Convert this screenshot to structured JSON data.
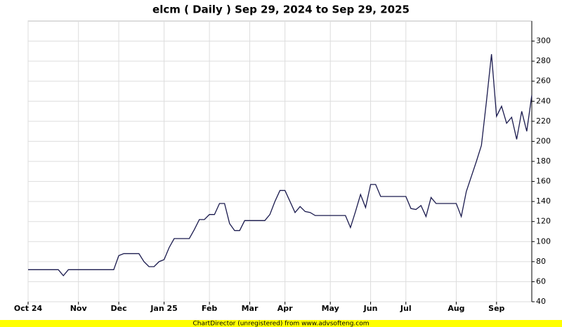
{
  "chart_data": {
    "type": "line",
    "title": "elcm ( Daily ) Sep 29, 2024 to Sep 29, 2025",
    "footer": "ChartDirector (unregistered) from www.advsofteng.com",
    "categories": [
      "Oct 24",
      null,
      null,
      null,
      null,
      null,
      null,
      null,
      null,
      null,
      "Nov",
      null,
      null,
      null,
      null,
      null,
      null,
      null,
      "Dec",
      null,
      null,
      null,
      null,
      null,
      null,
      null,
      null,
      "Jan 25",
      null,
      null,
      null,
      null,
      null,
      null,
      null,
      null,
      "Feb",
      null,
      null,
      null,
      null,
      null,
      null,
      null,
      "Mar",
      null,
      null,
      null,
      null,
      null,
      null,
      "Apr",
      null,
      null,
      null,
      null,
      null,
      null,
      null,
      null,
      "May",
      null,
      null,
      null,
      null,
      null,
      null,
      null,
      "Jun",
      null,
      null,
      null,
      null,
      null,
      null,
      "Jul",
      null,
      null,
      null,
      null,
      null,
      null,
      null,
      null,
      null,
      "Aug",
      null,
      null,
      null,
      null,
      null,
      null,
      null,
      "Sep",
      null,
      null,
      null,
      null,
      null,
      null,
      null
    ],
    "series": [
      {
        "name": "elcm",
        "color": "#1a1a4e",
        "values": [
          72,
          72,
          72,
          72,
          72,
          72,
          72,
          66,
          72,
          72,
          72,
          72,
          72,
          72,
          72,
          72,
          72,
          72,
          86,
          88,
          88,
          88,
          88,
          80,
          75,
          75,
          80,
          82,
          94,
          103,
          103,
          103,
          103,
          112,
          122,
          122,
          127,
          127,
          138,
          138,
          118,
          111,
          111,
          121,
          121,
          121,
          121,
          121,
          127,
          140,
          151,
          151,
          140,
          129,
          135,
          130,
          129,
          126,
          126,
          126,
          126,
          126,
          126,
          126,
          114,
          130,
          147,
          134,
          157,
          157,
          145,
          145,
          145,
          145,
          145,
          145,
          133,
          132,
          136,
          125,
          144,
          138,
          138,
          138,
          138,
          138,
          125,
          150,
          165,
          180,
          196,
          240,
          287,
          225,
          235,
          218,
          224,
          202,
          230,
          210,
          246
        ]
      }
    ],
    "ylim": [
      40,
      320
    ],
    "yticks": [
      40,
      60,
      80,
      100,
      120,
      140,
      160,
      180,
      200,
      220,
      240,
      260,
      280,
      300
    ],
    "grid": true
  }
}
